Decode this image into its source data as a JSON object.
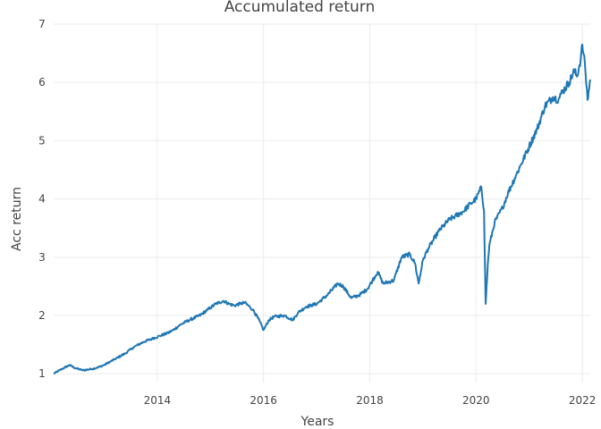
{
  "chart_data": {
    "type": "line",
    "title": "Accumulated return",
    "xlabel": "Years",
    "ylabel": "Acc return",
    "xlim": [
      2012.05,
      2022.15
    ],
    "ylim": [
      0.85,
      7.0
    ],
    "x_ticks": [
      2014,
      2016,
      2018,
      2020,
      2022
    ],
    "x_tick_labels": [
      "2014",
      "2016",
      "2018",
      "2020",
      "2022"
    ],
    "y_ticks": [
      1,
      2,
      3,
      4,
      5,
      6,
      7
    ],
    "y_tick_labels": [
      "1",
      "2",
      "3",
      "4",
      "5",
      "6",
      "7"
    ],
    "grid": true,
    "series": [
      {
        "name": "Acc return",
        "color": "#1f77b4",
        "x": [
          2012.05,
          2012.2,
          2012.35,
          2012.45,
          2012.6,
          2012.75,
          2012.85,
          2013.0,
          2013.2,
          2013.4,
          2013.5,
          2013.6,
          2013.75,
          2013.9,
          2014.05,
          2014.2,
          2014.3,
          2014.45,
          2014.6,
          2014.8,
          2014.95,
          2015.1,
          2015.25,
          2015.35,
          2015.45,
          2015.55,
          2015.65,
          2015.8,
          2015.9,
          2016.0,
          2016.1,
          2016.2,
          2016.4,
          2016.55,
          2016.65,
          2016.8,
          2017.0,
          2017.2,
          2017.4,
          2017.5,
          2017.65,
          2017.8,
          2017.95,
          2018.05,
          2018.15,
          2018.25,
          2018.45,
          2018.6,
          2018.75,
          2018.85,
          2018.92,
          2019.0,
          2019.1,
          2019.3,
          2019.5,
          2019.6,
          2019.75,
          2019.9,
          2020.0,
          2020.1,
          2020.15,
          2020.18,
          2020.22,
          2020.25,
          2020.35,
          2020.5,
          2020.6,
          2020.75,
          2020.85,
          2021.0,
          2021.15,
          2021.3,
          2021.45,
          2021.55,
          2021.6,
          2021.75,
          2021.85,
          2021.9,
          2021.97,
          2022.0,
          2022.05,
          2022.1,
          2022.15
        ],
        "y": [
          1.0,
          1.08,
          1.15,
          1.1,
          1.06,
          1.08,
          1.1,
          1.15,
          1.25,
          1.35,
          1.42,
          1.48,
          1.55,
          1.6,
          1.65,
          1.7,
          1.75,
          1.85,
          1.92,
          2.0,
          2.1,
          2.2,
          2.25,
          2.2,
          2.17,
          2.2,
          2.22,
          2.1,
          1.95,
          1.75,
          1.92,
          1.98,
          2.0,
          1.92,
          2.05,
          2.15,
          2.2,
          2.35,
          2.55,
          2.5,
          2.3,
          2.35,
          2.45,
          2.6,
          2.75,
          2.55,
          2.6,
          3.0,
          3.05,
          2.9,
          2.55,
          2.95,
          3.15,
          3.45,
          3.65,
          3.7,
          3.78,
          3.92,
          4.0,
          4.2,
          3.8,
          2.2,
          2.85,
          3.2,
          3.6,
          3.85,
          4.1,
          4.4,
          4.6,
          4.9,
          5.2,
          5.6,
          5.75,
          5.7,
          5.8,
          6.0,
          6.2,
          6.1,
          6.4,
          6.65,
          6.3,
          5.7,
          6.05
        ]
      }
    ]
  }
}
